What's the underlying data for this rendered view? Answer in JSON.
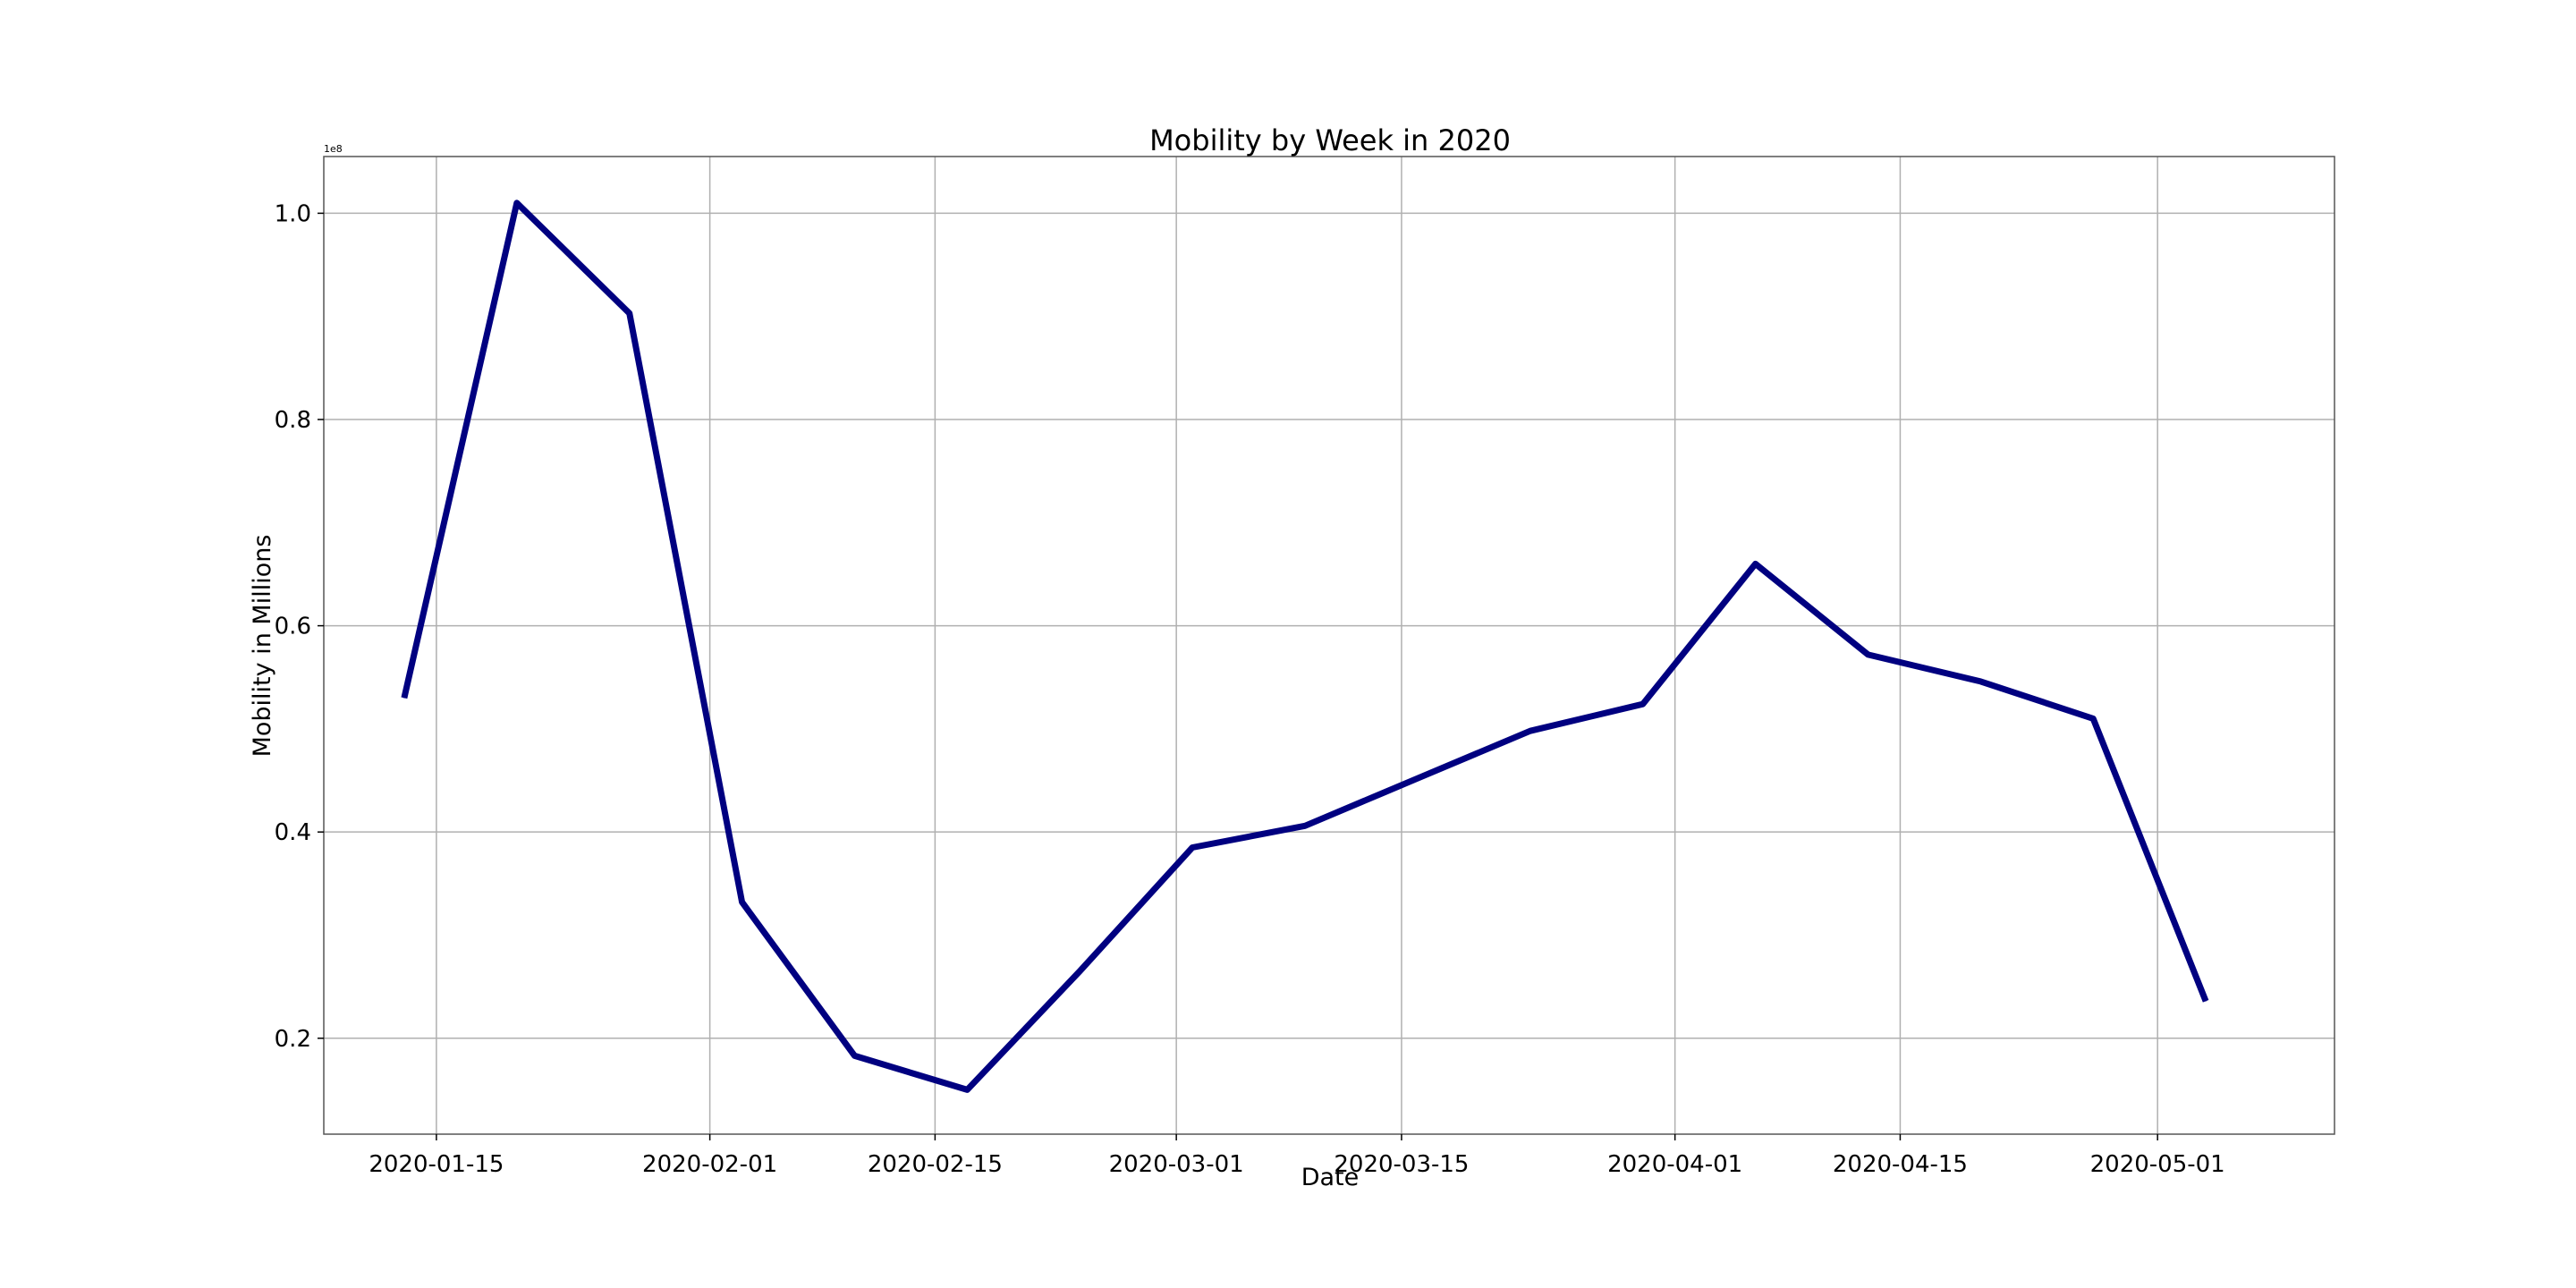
{
  "chart_data": {
    "type": "line",
    "title": "Mobility by Week in 2020",
    "xlabel": "Date",
    "ylabel": "Mobility in Millions",
    "y_offset_label": "1e8",
    "x_axis": {
      "type": "date",
      "range": [
        "2020-01-08",
        "2020-05-12"
      ],
      "ticks": [
        "2020-01-15",
        "2020-02-01",
        "2020-02-15",
        "2020-03-01",
        "2020-03-15",
        "2020-04-01",
        "2020-04-15",
        "2020-05-01"
      ]
    },
    "y_axis": {
      "range": [
        10700000,
        105500000
      ],
      "ticks": [
        20000000,
        40000000,
        60000000,
        80000000,
        100000000
      ],
      "tick_labels": [
        "0.2",
        "0.4",
        "0.6",
        "0.8",
        "1.0"
      ]
    },
    "grid": true,
    "line_color": "#000080",
    "series": [
      {
        "x": [
          "2020-01-13",
          "2020-01-20",
          "2020-01-27",
          "2020-02-03",
          "2020-02-10",
          "2020-02-17",
          "2020-02-24",
          "2020-03-02",
          "2020-03-09",
          "2020-03-16",
          "2020-03-23",
          "2020-03-30",
          "2020-04-06",
          "2020-04-13",
          "2020-04-20",
          "2020-04-27",
          "2020-05-04"
        ],
        "values": [
          53000000,
          101000000,
          90300000,
          33200000,
          18300000,
          15000000,
          26500000,
          38500000,
          40600000,
          45200000,
          49800000,
          52400000,
          66000000,
          57200000,
          54600000,
          51000000,
          23600000
        ]
      }
    ]
  }
}
